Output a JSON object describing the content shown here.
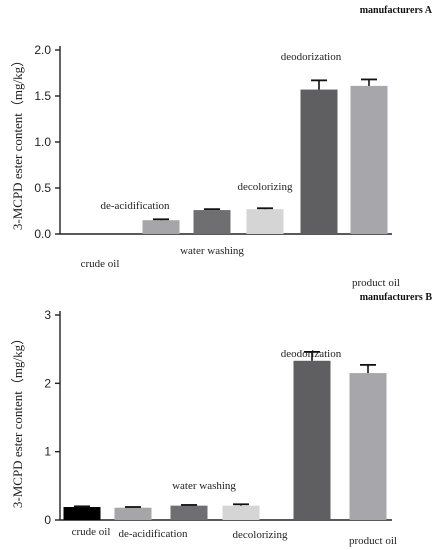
{
  "chart_data": [
    {
      "type": "bar",
      "title": "manufacturers A",
      "ylabel": "3-MCPD ester content（mg/kg）",
      "xlabel": "",
      "ylim": [
        0,
        2.0
      ],
      "yticks": [
        "0.0",
        "0.5",
        "1.0",
        "1.5",
        "2.0"
      ],
      "grid": false,
      "categories": [
        "crude oil",
        "de-acidification",
        "water washing",
        "decolorizing",
        "deodorization",
        "product oil"
      ],
      "values": [
        0.0,
        0.15,
        0.26,
        0.27,
        1.57,
        1.61
      ],
      "errors": [
        0.0,
        0.01,
        0.01,
        0.01,
        0.1,
        0.07
      ],
      "colors": [
        "#000000",
        "#a6a6a8",
        "#6f6f71",
        "#d5d5d5",
        "#5f5f61",
        "#a7a6ab"
      ]
    },
    {
      "type": "bar",
      "title": "manufacturers  B",
      "ylabel": "3-MCPD ester content（mg/kg）",
      "xlabel": "",
      "ylim": [
        0,
        3
      ],
      "yticks": [
        "0",
        "1",
        "2",
        "3"
      ],
      "grid": false,
      "categories": [
        "crude oil",
        "de-acidification",
        "water washing",
        "decolorizing",
        "deodorization",
        "product oil"
      ],
      "values": [
        0.19,
        0.18,
        0.21,
        0.21,
        2.33,
        2.15
      ],
      "errors": [
        0.01,
        0.01,
        0.01,
        0.02,
        0.13,
        0.12
      ],
      "colors": [
        "#000000",
        "#a6a6a8",
        "#6f6f71",
        "#d5d5d5",
        "#5f5f61",
        "#a7a6ab"
      ]
    }
  ]
}
